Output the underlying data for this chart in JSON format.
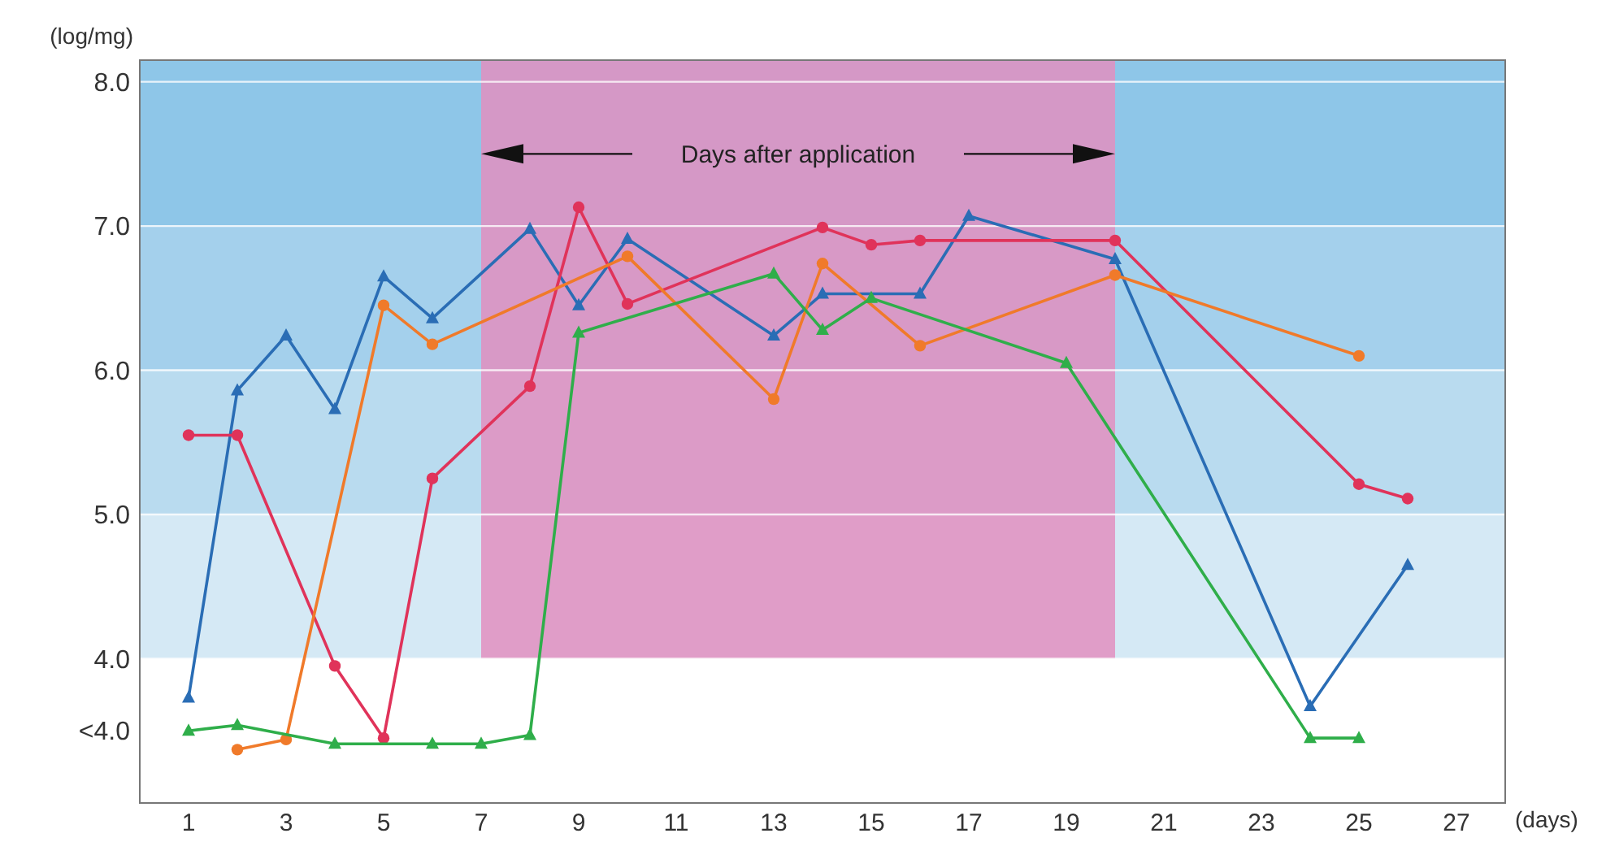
{
  "chart_data": {
    "type": "line",
    "ylabel": "(log/mg)",
    "xlabel": "(days)",
    "xlim": [
      0,
      28
    ],
    "xticks": [
      1,
      3,
      5,
      7,
      9,
      11,
      13,
      15,
      17,
      19,
      21,
      23,
      25,
      27
    ],
    "ylim": [
      3.0,
      8.15
    ],
    "yticks": [
      {
        "value": 3.5,
        "label": "<4.0"
      },
      {
        "value": 4,
        "label": "4.0"
      },
      {
        "value": 5,
        "label": "5.0"
      },
      {
        "value": 6,
        "label": "6.0"
      },
      {
        "value": 7,
        "label": "7.0"
      },
      {
        "value": 8,
        "label": "8.0"
      }
    ],
    "grid": "y",
    "bands": [
      {
        "axis": "y",
        "from": 4,
        "to": 5,
        "color": "#d5e9f5"
      },
      {
        "axis": "y",
        "from": 5,
        "to": 6,
        "color": "#b9dbef"
      },
      {
        "axis": "y",
        "from": 6,
        "to": 7,
        "color": "#a4d0ec"
      },
      {
        "axis": "y",
        "from": 7,
        "to": 8.15,
        "color": "#8ec6e8"
      },
      {
        "axis": "x",
        "from": 7,
        "to": 20,
        "label": "Days after application",
        "color": "#e28fbf"
      }
    ],
    "series": [
      {
        "color": "#2a6db5",
        "marker": "triangle",
        "x": [
          1,
          2,
          3,
          4,
          5,
          6,
          8,
          9,
          10,
          13,
          14,
          16,
          17,
          20,
          24,
          26
        ],
        "values": [
          3.73,
          5.86,
          6.24,
          5.73,
          6.65,
          6.36,
          6.98,
          6.45,
          6.91,
          6.24,
          6.53,
          6.53,
          7.07,
          6.77,
          3.67,
          4.65
        ]
      },
      {
        "color": "#e0335a",
        "marker": "circle",
        "x": [
          1,
          2,
          4,
          5,
          6,
          8,
          9,
          10,
          14,
          15,
          16,
          20,
          25,
          26
        ],
        "values": [
          5.55,
          5.55,
          3.95,
          3.45,
          5.25,
          5.89,
          7.13,
          6.46,
          6.99,
          6.87,
          6.9,
          6.9,
          5.21,
          5.11
        ]
      },
      {
        "color": "#f07a2a",
        "marker": "circle",
        "x": [
          2,
          3,
          5,
          6,
          10,
          13,
          14,
          16,
          20,
          25
        ],
        "values": [
          3.37,
          3.44,
          6.45,
          6.18,
          6.79,
          5.8,
          6.74,
          6.17,
          6.66,
          6.1
        ]
      },
      {
        "color": "#2fae4a",
        "marker": "triangle",
        "x": [
          1,
          2,
          4,
          6,
          7,
          8,
          9,
          13,
          14,
          15,
          19,
          24,
          25
        ],
        "values": [
          3.5,
          3.54,
          3.41,
          3.41,
          3.41,
          3.47,
          6.26,
          6.67,
          6.28,
          6.5,
          6.05,
          3.45,
          3.45
        ]
      }
    ]
  }
}
